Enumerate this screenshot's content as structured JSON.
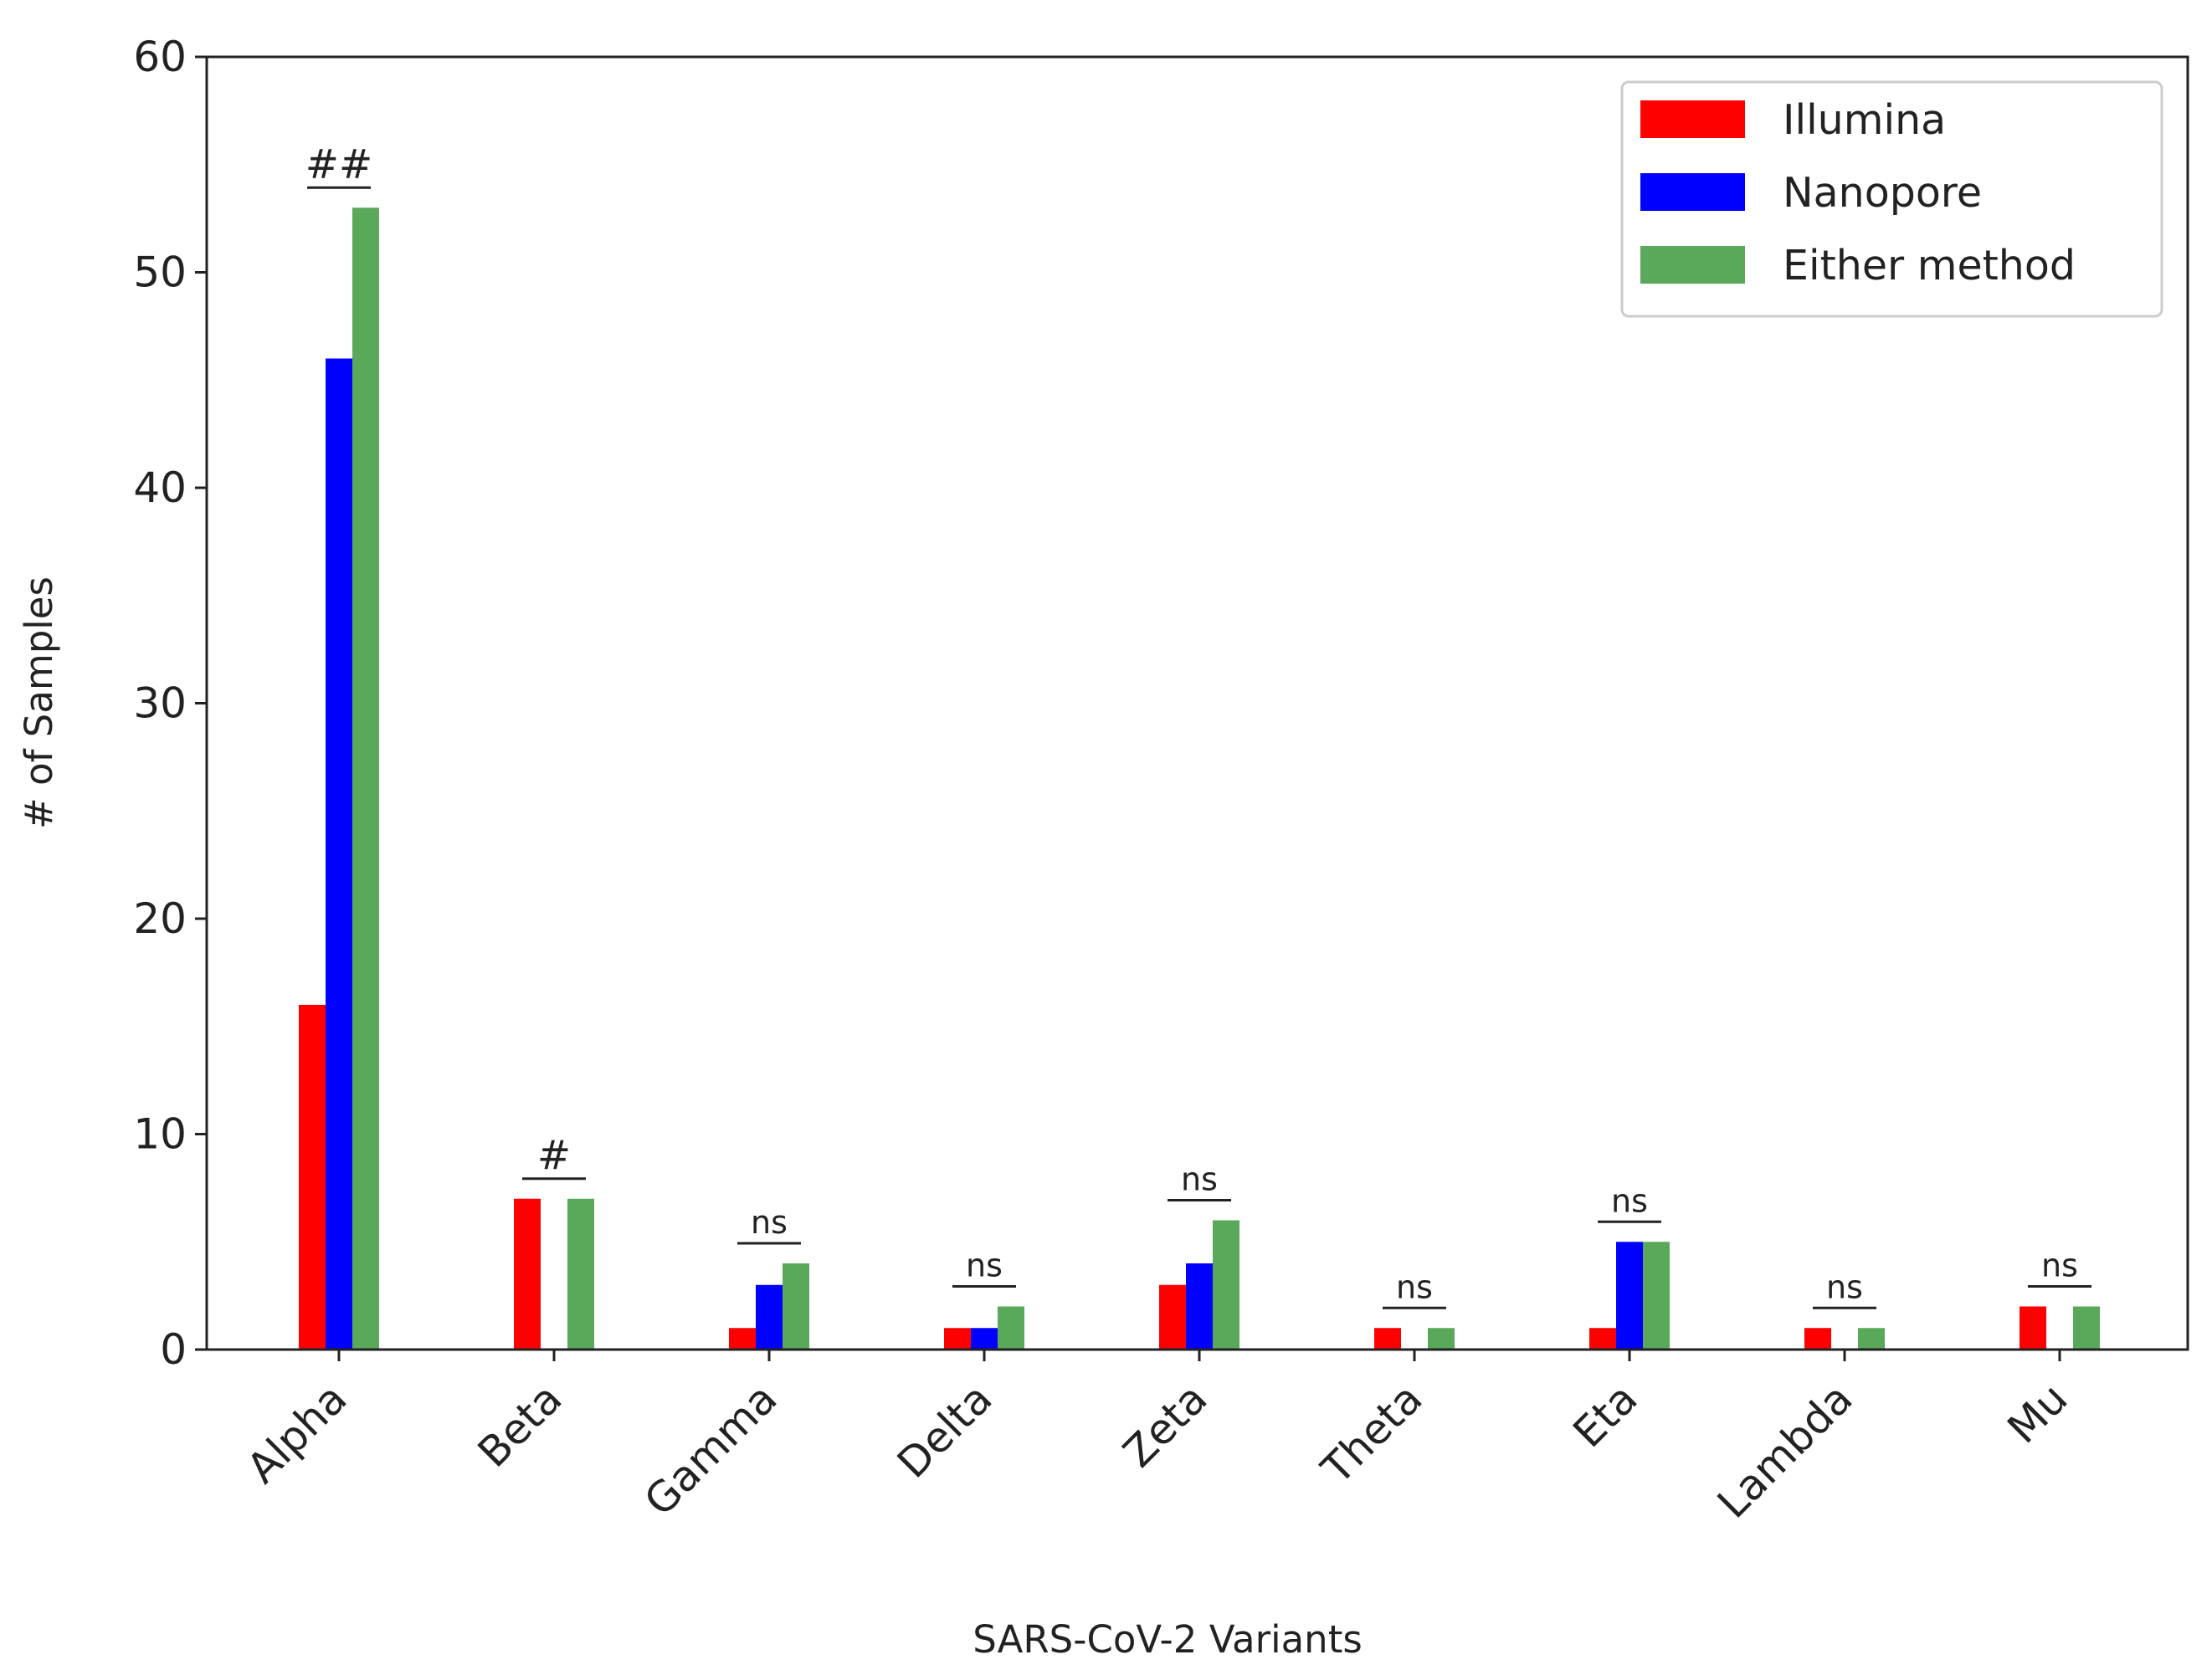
{
  "chart_data": {
    "type": "bar",
    "title": "",
    "xlabel": "SARS-CoV-2 Variants",
    "ylabel": "# of Samples",
    "ylim": [
      0,
      60
    ],
    "yticks": [
      "0",
      "10",
      "20",
      "30",
      "40",
      "50",
      "60"
    ],
    "categories": [
      "Alpha",
      "Beta",
      "Gamma",
      "Delta",
      "Zeta",
      "Theta",
      "Eta",
      "Lambda",
      "Mu"
    ],
    "series": [
      {
        "name": "Illumina",
        "color": "#ff0000",
        "values": [
          16,
          7,
          1,
          1,
          3,
          1,
          1,
          1,
          2
        ]
      },
      {
        "name": "Nanopore",
        "color": "#0000ff",
        "values": [
          46,
          0,
          3,
          1,
          4,
          0,
          5,
          0,
          0
        ]
      },
      {
        "name": "Either method",
        "color": "#5aa85a",
        "values": [
          53,
          7,
          4,
          2,
          6,
          1,
          5,
          1,
          2
        ]
      }
    ],
    "annotations": [
      "##",
      "#",
      "ns",
      "ns",
      "ns",
      "ns",
      "ns",
      "ns",
      "ns"
    ],
    "legend_position": "top-right",
    "grid": false
  }
}
